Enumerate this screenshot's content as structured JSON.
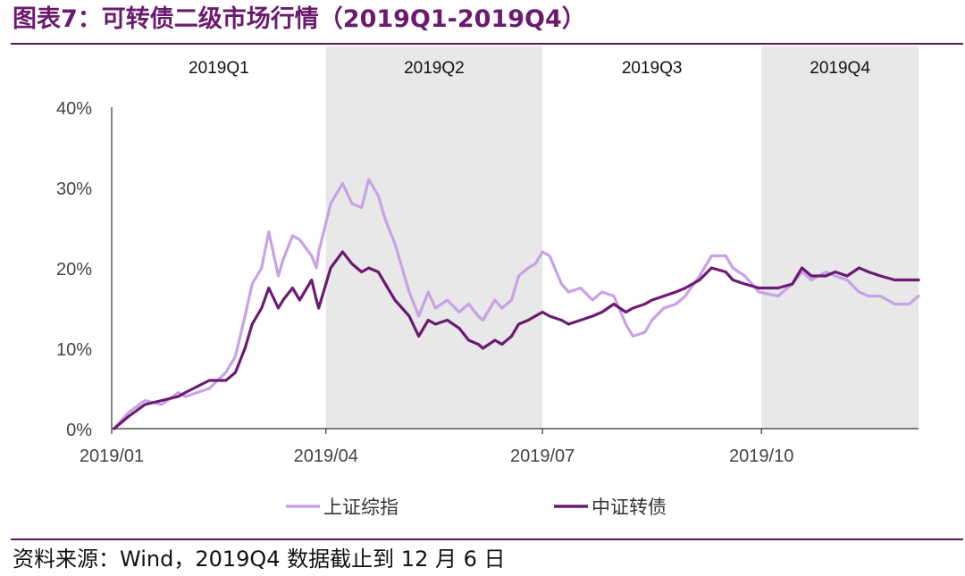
{
  "header": {
    "title": "图表7：可转债二级市场行情（2019Q1-2019Q4）"
  },
  "footer": {
    "source": "资料来源：Wind，2019Q4 数据截止到 12 月 6 日"
  },
  "colors": {
    "series_1": "#c8a2e6",
    "series_2": "#6b1b72",
    "band": "#e8e8e8",
    "axis": "#333333",
    "title": "#6a1b6e"
  },
  "chart_data": {
    "type": "line",
    "title": "",
    "xlabel": "",
    "ylabel": "",
    "ylim": [
      0,
      40
    ],
    "yticks": [
      "0%",
      "10%",
      "20%",
      "30%",
      "40%"
    ],
    "ytick_values": [
      0,
      10,
      20,
      30,
      40
    ],
    "xlim": [
      "2019-01-01",
      "2019-12-06"
    ],
    "xticks": [
      "2019/01",
      "2019/04",
      "2019/07",
      "2019/10"
    ],
    "xtick_dates": [
      "2019-01-01",
      "2019-04-01",
      "2019-07-01",
      "2019-10-01"
    ],
    "quarters": [
      {
        "label": "2019Q1",
        "start": "2019-01-01",
        "end": "2019-04-01",
        "shaded": false
      },
      {
        "label": "2019Q2",
        "start": "2019-04-01",
        "end": "2019-07-01",
        "shaded": true
      },
      {
        "label": "2019Q3",
        "start": "2019-07-01",
        "end": "2019-10-01",
        "shaded": false
      },
      {
        "label": "2019Q4",
        "start": "2019-10-01",
        "end": "2019-12-06",
        "shaded": true
      }
    ],
    "legend_position": "bottom",
    "series": [
      {
        "name": "上证综指",
        "color": "#c8a2e6",
        "points": [
          [
            "2019-01-02",
            0
          ],
          [
            "2019-01-08",
            2
          ],
          [
            "2019-01-15",
            3.5
          ],
          [
            "2019-01-22",
            3
          ],
          [
            "2019-01-29",
            4.5
          ],
          [
            "2019-02-01",
            4
          ],
          [
            "2019-02-11",
            5
          ],
          [
            "2019-02-18",
            7
          ],
          [
            "2019-02-22",
            9
          ],
          [
            "2019-02-26",
            14
          ],
          [
            "2019-03-01",
            18
          ],
          [
            "2019-03-05",
            20
          ],
          [
            "2019-03-08",
            24.5
          ],
          [
            "2019-03-12",
            19
          ],
          [
            "2019-03-14",
            21
          ],
          [
            "2019-03-18",
            24
          ],
          [
            "2019-03-21",
            23.5
          ],
          [
            "2019-03-26",
            21.5
          ],
          [
            "2019-03-28",
            20
          ],
          [
            "2019-03-29",
            22
          ],
          [
            "2019-04-03",
            28
          ],
          [
            "2019-04-08",
            30.5
          ],
          [
            "2019-04-12",
            28
          ],
          [
            "2019-04-16",
            27.5
          ],
          [
            "2019-04-19",
            31
          ],
          [
            "2019-04-23",
            29
          ],
          [
            "2019-04-26",
            26
          ],
          [
            "2019-04-30",
            23
          ],
          [
            "2019-05-06",
            17
          ],
          [
            "2019-05-10",
            14
          ],
          [
            "2019-05-14",
            17
          ],
          [
            "2019-05-17",
            15
          ],
          [
            "2019-05-22",
            16
          ],
          [
            "2019-05-27",
            14.5
          ],
          [
            "2019-05-31",
            15.5
          ],
          [
            "2019-06-04",
            14
          ],
          [
            "2019-06-06",
            13.5
          ],
          [
            "2019-06-11",
            16
          ],
          [
            "2019-06-14",
            15
          ],
          [
            "2019-06-18",
            16
          ],
          [
            "2019-06-21",
            19
          ],
          [
            "2019-06-25",
            20
          ],
          [
            "2019-06-28",
            20.5
          ],
          [
            "2019-07-01",
            22
          ],
          [
            "2019-07-04",
            21.5
          ],
          [
            "2019-07-09",
            18
          ],
          [
            "2019-07-12",
            17
          ],
          [
            "2019-07-17",
            17.5
          ],
          [
            "2019-07-22",
            16
          ],
          [
            "2019-07-26",
            17
          ],
          [
            "2019-07-31",
            16.5
          ],
          [
            "2019-08-05",
            13
          ],
          [
            "2019-08-08",
            11.5
          ],
          [
            "2019-08-13",
            12
          ],
          [
            "2019-08-16",
            13.5
          ],
          [
            "2019-08-21",
            15
          ],
          [
            "2019-08-26",
            15.5
          ],
          [
            "2019-08-30",
            16.5
          ],
          [
            "2019-09-05",
            19
          ],
          [
            "2019-09-10",
            21.5
          ],
          [
            "2019-09-16",
            21.5
          ],
          [
            "2019-09-19",
            20
          ],
          [
            "2019-09-24",
            19
          ],
          [
            "2019-09-30",
            17
          ],
          [
            "2019-10-08",
            16.5
          ],
          [
            "2019-10-14",
            18
          ],
          [
            "2019-10-18",
            19.5
          ],
          [
            "2019-10-22",
            18.5
          ],
          [
            "2019-10-28",
            19.5
          ],
          [
            "2019-11-01",
            19
          ],
          [
            "2019-11-06",
            18.5
          ],
          [
            "2019-11-11",
            17
          ],
          [
            "2019-11-15",
            16.5
          ],
          [
            "2019-11-20",
            16.5
          ],
          [
            "2019-11-26",
            15.5
          ],
          [
            "2019-12-02",
            15.5
          ],
          [
            "2019-12-06",
            16.5
          ]
        ]
      },
      {
        "name": "中证转债",
        "color": "#6b1b72",
        "points": [
          [
            "2019-01-02",
            0
          ],
          [
            "2019-01-08",
            1.5
          ],
          [
            "2019-01-15",
            3
          ],
          [
            "2019-01-22",
            3.5
          ],
          [
            "2019-01-29",
            4
          ],
          [
            "2019-02-01",
            4.5
          ],
          [
            "2019-02-11",
            6
          ],
          [
            "2019-02-18",
            6
          ],
          [
            "2019-02-22",
            7
          ],
          [
            "2019-02-26",
            10
          ],
          [
            "2019-03-01",
            13
          ],
          [
            "2019-03-05",
            15
          ],
          [
            "2019-03-08",
            17.5
          ],
          [
            "2019-03-12",
            15
          ],
          [
            "2019-03-14",
            16
          ],
          [
            "2019-03-18",
            17.5
          ],
          [
            "2019-03-21",
            16
          ],
          [
            "2019-03-26",
            18.5
          ],
          [
            "2019-03-28",
            16
          ],
          [
            "2019-03-29",
            15
          ],
          [
            "2019-04-03",
            20
          ],
          [
            "2019-04-08",
            22
          ],
          [
            "2019-04-12",
            20.5
          ],
          [
            "2019-04-16",
            19.5
          ],
          [
            "2019-04-19",
            20
          ],
          [
            "2019-04-23",
            19.5
          ],
          [
            "2019-04-26",
            18
          ],
          [
            "2019-04-30",
            16
          ],
          [
            "2019-05-06",
            14
          ],
          [
            "2019-05-10",
            11.5
          ],
          [
            "2019-05-14",
            13.5
          ],
          [
            "2019-05-17",
            13
          ],
          [
            "2019-05-22",
            13.5
          ],
          [
            "2019-05-27",
            12.5
          ],
          [
            "2019-05-31",
            11
          ],
          [
            "2019-06-04",
            10.5
          ],
          [
            "2019-06-06",
            10
          ],
          [
            "2019-06-11",
            11
          ],
          [
            "2019-06-14",
            10.5
          ],
          [
            "2019-06-18",
            11.5
          ],
          [
            "2019-06-21",
            13
          ],
          [
            "2019-06-25",
            13.5
          ],
          [
            "2019-06-28",
            14
          ],
          [
            "2019-07-01",
            14.5
          ],
          [
            "2019-07-04",
            14
          ],
          [
            "2019-07-09",
            13.5
          ],
          [
            "2019-07-12",
            13
          ],
          [
            "2019-07-17",
            13.5
          ],
          [
            "2019-07-22",
            14
          ],
          [
            "2019-07-26",
            14.5
          ],
          [
            "2019-07-31",
            15.5
          ],
          [
            "2019-08-05",
            14.5
          ],
          [
            "2019-08-08",
            15
          ],
          [
            "2019-08-13",
            15.5
          ],
          [
            "2019-08-16",
            16
          ],
          [
            "2019-08-21",
            16.5
          ],
          [
            "2019-08-26",
            17
          ],
          [
            "2019-08-30",
            17.5
          ],
          [
            "2019-09-05",
            18.5
          ],
          [
            "2019-09-10",
            20
          ],
          [
            "2019-09-16",
            19.5
          ],
          [
            "2019-09-19",
            18.5
          ],
          [
            "2019-09-24",
            18
          ],
          [
            "2019-09-30",
            17.5
          ],
          [
            "2019-10-08",
            17.5
          ],
          [
            "2019-10-14",
            18
          ],
          [
            "2019-10-18",
            20
          ],
          [
            "2019-10-22",
            19
          ],
          [
            "2019-10-28",
            19
          ],
          [
            "2019-11-01",
            19.5
          ],
          [
            "2019-11-06",
            19
          ],
          [
            "2019-11-11",
            20
          ],
          [
            "2019-11-15",
            19.5
          ],
          [
            "2019-11-20",
            19
          ],
          [
            "2019-11-26",
            18.5
          ],
          [
            "2019-12-02",
            18.5
          ],
          [
            "2019-12-06",
            18.5
          ]
        ]
      }
    ]
  }
}
